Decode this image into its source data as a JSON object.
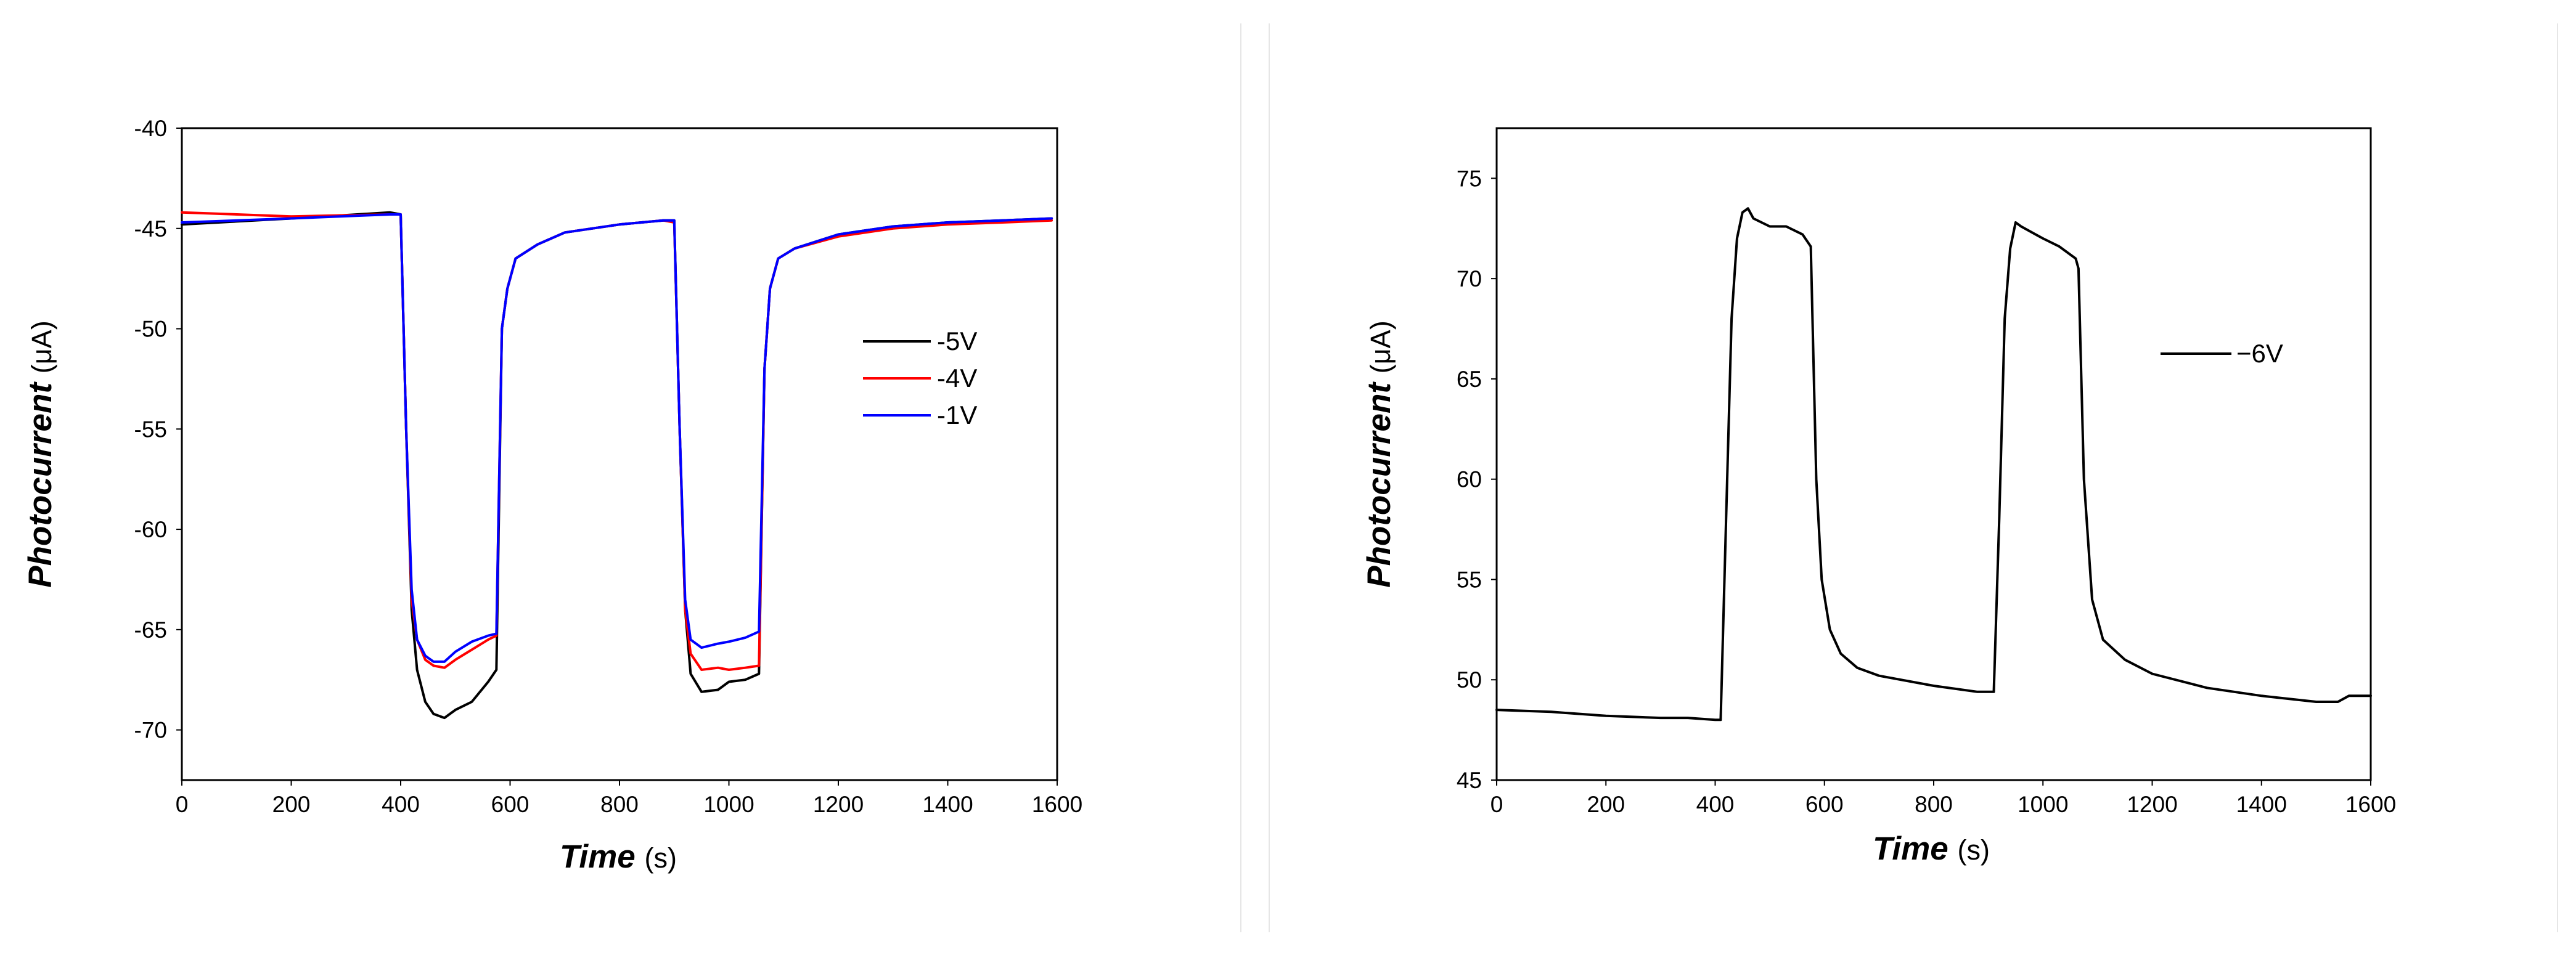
{
  "chart_data": [
    {
      "type": "line",
      "title": "",
      "xlabel": "Time",
      "xlabel_unit": "(s)",
      "ylabel": "Photocurrent",
      "ylabel_unit": "(μA)",
      "xlim": [
        0,
        1600
      ],
      "ylim": [
        -72.5,
        -40
      ],
      "x_ticks": [
        0,
        200,
        400,
        600,
        800,
        1000,
        1200,
        1400,
        1600
      ],
      "y_ticks": [
        -40,
        -45,
        -50,
        -55,
        -60,
        -65,
        -70
      ],
      "grid": false,
      "legend_position": "right",
      "series": [
        {
          "name": "-5V",
          "color": "#000000",
          "x": [
            0,
            200,
            380,
            400,
            410,
            420,
            430,
            445,
            460,
            480,
            500,
            530,
            560,
            575,
            585,
            595,
            610,
            650,
            700,
            800,
            880,
            900,
            910,
            920,
            930,
            950,
            980,
            1000,
            1030,
            1055,
            1065,
            1075,
            1090,
            1120,
            1200,
            1300,
            1400,
            1500,
            1590
          ],
          "y": [
            -44.8,
            -44.5,
            -44.2,
            -44.3,
            -55,
            -64,
            -67,
            -68.6,
            -69.2,
            -69.4,
            -69,
            -68.6,
            -67.6,
            -67,
            -50,
            -48,
            -46.5,
            -45.8,
            -45.2,
            -44.8,
            -44.6,
            -44.6,
            -55,
            -64,
            -67.2,
            -68.1,
            -68,
            -67.6,
            -67.5,
            -67.2,
            -52,
            -48,
            -46.5,
            -46,
            -45.3,
            -44.9,
            -44.7,
            -44.6,
            -44.5
          ]
        },
        {
          "name": "-4V",
          "color": "#ff0000",
          "x": [
            0,
            200,
            380,
            400,
            410,
            420,
            430,
            445,
            460,
            480,
            500,
            530,
            560,
            575,
            585,
            595,
            610,
            650,
            700,
            800,
            880,
            900,
            910,
            920,
            930,
            950,
            980,
            1000,
            1030,
            1055,
            1065,
            1075,
            1090,
            1120,
            1200,
            1300,
            1400,
            1500,
            1590
          ],
          "y": [
            -44.2,
            -44.4,
            -44.3,
            -44.3,
            -55,
            -63.5,
            -65.5,
            -66.5,
            -66.8,
            -66.9,
            -66.5,
            -66,
            -65.5,
            -65.3,
            -50,
            -48,
            -46.5,
            -45.8,
            -45.2,
            -44.8,
            -44.6,
            -44.7,
            -55,
            -64,
            -66.2,
            -67,
            -66.9,
            -67,
            -66.9,
            -66.8,
            -52,
            -48,
            -46.5,
            -46,
            -45.4,
            -45,
            -44.8,
            -44.7,
            -44.6
          ]
        },
        {
          "name": "-1V",
          "color": "#0000ff",
          "x": [
            0,
            200,
            380,
            400,
            410,
            420,
            430,
            445,
            460,
            480,
            500,
            530,
            560,
            575,
            585,
            595,
            610,
            650,
            700,
            800,
            880,
            900,
            910,
            920,
            930,
            950,
            980,
            1000,
            1030,
            1055,
            1065,
            1075,
            1090,
            1120,
            1200,
            1300,
            1400,
            1500,
            1590
          ],
          "y": [
            -44.7,
            -44.5,
            -44.3,
            -44.3,
            -55,
            -63,
            -65.5,
            -66.3,
            -66.6,
            -66.6,
            -66.1,
            -65.6,
            -65.3,
            -65.2,
            -50,
            -48,
            -46.5,
            -45.8,
            -45.2,
            -44.8,
            -44.6,
            -44.6,
            -55,
            -63.5,
            -65.5,
            -65.9,
            -65.7,
            -65.6,
            -65.4,
            -65.1,
            -52,
            -48,
            -46.5,
            -46,
            -45.3,
            -44.9,
            -44.7,
            -44.6,
            -44.5
          ]
        }
      ]
    },
    {
      "type": "line",
      "title": "",
      "xlabel": "Time",
      "xlabel_unit": "(s)",
      "ylabel": "Photocurrent",
      "ylabel_unit": "(μA)",
      "xlim": [
        0,
        1600
      ],
      "ylim": [
        45,
        77.5
      ],
      "x_ticks": [
        0,
        200,
        400,
        600,
        800,
        1000,
        1200,
        1400,
        1600
      ],
      "y_ticks": [
        45,
        50,
        55,
        60,
        65,
        70,
        75
      ],
      "grid": false,
      "legend_position": "right",
      "series": [
        {
          "name": "−6V",
          "color": "#000000",
          "x": [
            0,
            100,
            200,
            300,
            350,
            400,
            410,
            420,
            430,
            440,
            450,
            460,
            470,
            500,
            530,
            560,
            575,
            585,
            595,
            610,
            630,
            660,
            700,
            800,
            880,
            910,
            920,
            930,
            940,
            950,
            960,
            980,
            1000,
            1030,
            1060,
            1065,
            1075,
            1090,
            1110,
            1150,
            1200,
            1300,
            1400,
            1500,
            1540,
            1560,
            1600
          ],
          "y": [
            48.5,
            48.4,
            48.2,
            48.1,
            48.1,
            48.0,
            48.0,
            58,
            68,
            72,
            73.3,
            73.5,
            73.0,
            72.6,
            72.6,
            72.2,
            71.6,
            60,
            55,
            52.5,
            51.3,
            50.6,
            50.2,
            49.7,
            49.4,
            49.4,
            58,
            68,
            71.5,
            72.8,
            72.6,
            72.3,
            72.0,
            71.6,
            71.0,
            70.5,
            60,
            54,
            52,
            51,
            50.3,
            49.6,
            49.2,
            48.9,
            48.9,
            49.2,
            49.2
          ]
        }
      ]
    }
  ]
}
